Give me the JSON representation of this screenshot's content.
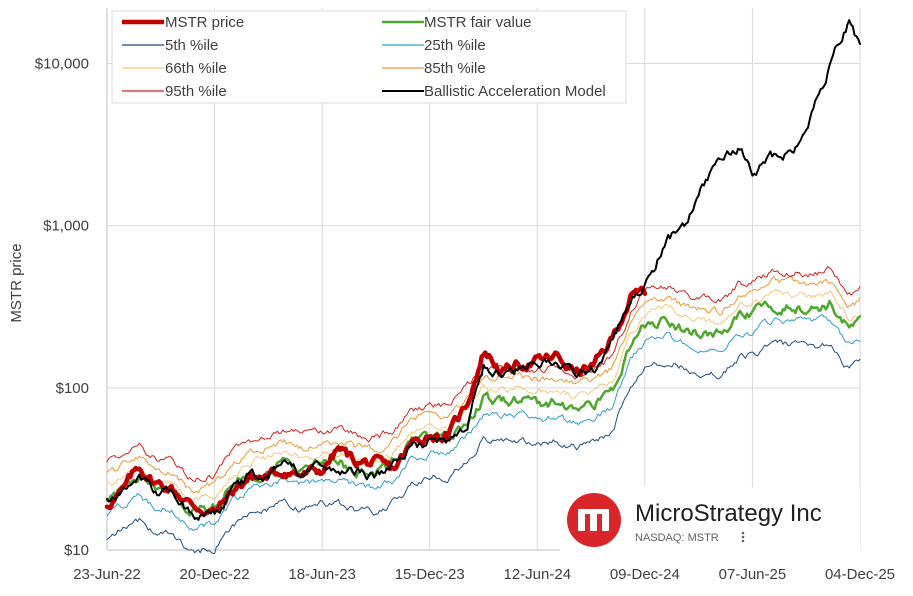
{
  "chart_data": {
    "type": "line",
    "ylabel": "MSTR price",
    "yscale": "log",
    "ylim": [
      10,
      22000
    ],
    "xlim": [
      "2022-06-23",
      "2025-12-04"
    ],
    "y_ticks": [
      {
        "value": 10,
        "label": "$10"
      },
      {
        "value": 100,
        "label": "$100"
      },
      {
        "value": 1000,
        "label": "$1,000"
      },
      {
        "value": 10000,
        "label": "$10,000"
      }
    ],
    "x_ticks": [
      {
        "date": "2022-06-23",
        "label": "23-Jun-22"
      },
      {
        "date": "2022-12-20",
        "label": "20-Dec-22"
      },
      {
        "date": "2023-06-18",
        "label": "18-Jun-23"
      },
      {
        "date": "2023-12-15",
        "label": "15-Dec-23"
      },
      {
        "date": "2024-06-12",
        "label": "12-Jun-24"
      },
      {
        "date": "2024-12-09",
        "label": "09-Dec-24"
      },
      {
        "date": "2025-06-07",
        "label": "07-Jun-25"
      },
      {
        "date": "2025-12-04",
        "label": "04-Dec-25"
      }
    ],
    "grid": true,
    "legend_position": "top-left",
    "series": [
      {
        "name": "MSTR price",
        "color": "#c00000",
        "width": 4.5,
        "end": "2024-12-09",
        "points": [
          [
            "2022-06-23",
            19
          ],
          [
            "2022-07-20",
            23
          ],
          [
            "2022-08-15",
            33
          ],
          [
            "2022-09-10",
            26
          ],
          [
            "2022-10-10",
            24
          ],
          [
            "2022-11-10",
            19
          ],
          [
            "2022-12-20",
            17
          ],
          [
            "2023-01-20",
            23
          ],
          [
            "2023-02-15",
            28
          ],
          [
            "2023-03-15",
            28
          ],
          [
            "2023-04-15",
            31
          ],
          [
            "2023-05-15",
            29
          ],
          [
            "2023-06-18",
            31
          ],
          [
            "2023-07-15",
            42
          ],
          [
            "2023-08-15",
            35
          ],
          [
            "2023-09-15",
            34
          ],
          [
            "2023-10-15",
            31
          ],
          [
            "2023-11-15",
            45
          ],
          [
            "2023-12-15",
            52
          ],
          [
            "2024-01-15",
            50
          ],
          [
            "2024-02-15",
            80
          ],
          [
            "2024-03-15",
            170
          ],
          [
            "2024-04-15",
            125
          ],
          [
            "2024-05-15",
            140
          ],
          [
            "2024-06-12",
            145
          ],
          [
            "2024-07-15",
            155
          ],
          [
            "2024-08-15",
            125
          ],
          [
            "2024-09-15",
            135
          ],
          [
            "2024-10-15",
            200
          ],
          [
            "2024-11-15",
            360
          ],
          [
            "2024-12-09",
            390
          ]
        ]
      },
      {
        "name": "MSTR fair value",
        "color": "#4ea72e",
        "width": 2.5,
        "end": "2025-12-04",
        "points": [
          [
            "2022-06-23",
            21
          ],
          [
            "2022-07-20",
            24
          ],
          [
            "2022-08-15",
            27
          ],
          [
            "2022-09-10",
            23
          ],
          [
            "2022-10-10",
            22
          ],
          [
            "2022-11-10",
            17
          ],
          [
            "2022-12-20",
            18
          ],
          [
            "2023-01-20",
            25
          ],
          [
            "2023-02-15",
            29
          ],
          [
            "2023-03-15",
            31
          ],
          [
            "2023-04-15",
            34
          ],
          [
            "2023-05-15",
            31
          ],
          [
            "2023-06-18",
            34
          ],
          [
            "2023-07-15",
            34
          ],
          [
            "2023-08-15",
            31
          ],
          [
            "2023-09-15",
            30
          ],
          [
            "2023-10-15",
            34
          ],
          [
            "2023-11-15",
            45
          ],
          [
            "2023-12-15",
            50
          ],
          [
            "2024-01-15",
            48
          ],
          [
            "2024-02-15",
            62
          ],
          [
            "2024-03-15",
            85
          ],
          [
            "2024-04-15",
            82
          ],
          [
            "2024-05-15",
            85
          ],
          [
            "2024-06-12",
            80
          ],
          [
            "2024-07-15",
            82
          ],
          [
            "2024-08-15",
            75
          ],
          [
            "2024-09-15",
            80
          ],
          [
            "2024-10-15",
            95
          ],
          [
            "2024-11-15",
            180
          ],
          [
            "2024-12-09",
            240
          ],
          [
            "2025-01-15",
            260
          ],
          [
            "2025-02-15",
            230
          ],
          [
            "2025-03-15",
            220
          ],
          [
            "2025-04-15",
            210
          ],
          [
            "2025-05-15",
            270
          ],
          [
            "2025-06-07",
            280
          ],
          [
            "2025-07-15",
            330
          ],
          [
            "2025-08-15",
            320
          ],
          [
            "2025-09-15",
            310
          ],
          [
            "2025-10-15",
            330
          ],
          [
            "2025-11-15",
            230
          ],
          [
            "2025-12-04",
            250
          ]
        ]
      },
      {
        "name": "5th %ile",
        "color": "#1f4e79",
        "width": 1,
        "factor": 0.57,
        "end": "2025-12-04"
      },
      {
        "name": "25th %ile",
        "color": "#2e9fc9",
        "width": 1,
        "factor": 0.8,
        "end": "2025-12-04"
      },
      {
        "name": "66th %ile",
        "color": "#f5c87a",
        "width": 1,
        "factor": 1.17,
        "end": "2025-12-04"
      },
      {
        "name": "85th %ile",
        "color": "#e69b2a",
        "width": 1,
        "factor": 1.38,
        "end": "2025-12-04"
      },
      {
        "name": "95th %ile",
        "color": "#d02020",
        "width": 1,
        "factor": 1.62,
        "end": "2025-12-04"
      },
      {
        "name": "Ballistic Acceleration Model",
        "color": "#000000",
        "width": 2,
        "end": "2025-12-04",
        "points": [
          [
            "2022-06-23",
            20
          ],
          [
            "2022-07-20",
            23
          ],
          [
            "2022-08-15",
            27
          ],
          [
            "2022-09-10",
            23
          ],
          [
            "2022-10-10",
            22
          ],
          [
            "2022-11-10",
            17
          ],
          [
            "2022-12-20",
            17
          ],
          [
            "2023-01-20",
            23
          ],
          [
            "2023-02-15",
            28
          ],
          [
            "2023-03-15",
            30
          ],
          [
            "2023-04-15",
            32
          ],
          [
            "2023-05-15",
            29
          ],
          [
            "2023-06-18",
            32
          ],
          [
            "2023-07-15",
            33
          ],
          [
            "2023-08-15",
            30
          ],
          [
            "2023-09-15",
            29
          ],
          [
            "2023-10-15",
            32
          ],
          [
            "2023-11-15",
            42
          ],
          [
            "2023-12-15",
            47
          ],
          [
            "2024-01-15",
            46
          ],
          [
            "2024-02-15",
            60
          ],
          [
            "2024-03-15",
            140
          ],
          [
            "2024-04-15",
            120
          ],
          [
            "2024-05-15",
            135
          ],
          [
            "2024-06-12",
            140
          ],
          [
            "2024-07-15",
            150
          ],
          [
            "2024-08-15",
            120
          ],
          [
            "2024-09-15",
            130
          ],
          [
            "2024-10-15",
            190
          ],
          [
            "2024-11-15",
            350
          ],
          [
            "2024-12-09",
            420
          ],
          [
            "2025-01-15",
            800
          ],
          [
            "2025-02-15",
            1000
          ],
          [
            "2025-03-15",
            1700
          ],
          [
            "2025-04-15",
            2500
          ],
          [
            "2025-05-15",
            3000
          ],
          [
            "2025-06-07",
            2200
          ],
          [
            "2025-07-15",
            2700
          ],
          [
            "2025-08-15",
            2900
          ],
          [
            "2025-09-15",
            5000
          ],
          [
            "2025-10-15",
            10000
          ],
          [
            "2025-11-15",
            18000
          ],
          [
            "2025-12-04",
            13000
          ]
        ]
      }
    ]
  },
  "logo": {
    "company": "MicroStrategy Inc",
    "exchange": "NASDAQ: MSTR",
    "menu_icon": "vertical-dots-icon",
    "mark_color": "#d9262b"
  }
}
